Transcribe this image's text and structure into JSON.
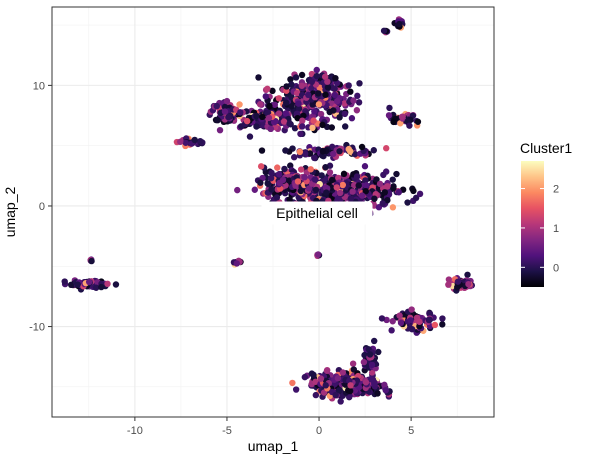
{
  "chart_data": {
    "type": "scatter",
    "title": "",
    "xlabel": "umap_1",
    "ylabel": "umap_2",
    "xlim": [
      -14.5,
      9.5
    ],
    "ylim": [
      -17.5,
      16.5
    ],
    "x_ticks": [
      -10,
      -5,
      0,
      5
    ],
    "y_ticks": [
      -10,
      0,
      10
    ],
    "x_tick_labels": [
      "-10",
      "-5",
      "0",
      "5"
    ],
    "y_tick_labels": [
      "-10",
      "0",
      "10"
    ],
    "grid": true,
    "legend": {
      "title": "Cluster1",
      "placement": "right",
      "type": "colorbar",
      "range": [
        -0.5,
        2.7
      ],
      "ticks": [
        0,
        1,
        2
      ],
      "tick_labels": [
        "0",
        "1",
        "2"
      ],
      "palette": "magma",
      "colors": [
        "#000004",
        "#1d1147",
        "#51127c",
        "#822681",
        "#b73779",
        "#e75263",
        "#fc8961",
        "#fec488",
        "#fcfdbf"
      ]
    },
    "annotation": {
      "text": "Epithelial cell",
      "x": 0,
      "y": 0
    },
    "clusters": [
      {
        "name": "upper-main",
        "cx": -0.5,
        "cy": 8.5,
        "sx": 2.2,
        "sy": 1.6,
        "n": 260
      },
      {
        "name": "upper-left-band",
        "cx": -3.2,
        "cy": 7.2,
        "sx": 1.6,
        "sy": 0.6,
        "n": 120
      },
      {
        "name": "left-blob",
        "cx": -5.0,
        "cy": 7.8,
        "sx": 0.7,
        "sy": 0.7,
        "n": 70
      },
      {
        "name": "top-vertical",
        "cx": 0.0,
        "cy": 10.0,
        "sx": 0.8,
        "sy": 0.9,
        "n": 90
      },
      {
        "name": "upper-right-small",
        "cx": 4.6,
        "cy": 7.2,
        "sx": 0.6,
        "sy": 0.4,
        "n": 40
      },
      {
        "name": "middle-band",
        "cx": 0.5,
        "cy": 4.5,
        "sx": 2.0,
        "sy": 0.4,
        "n": 80
      },
      {
        "name": "center-main",
        "cx": 1.2,
        "cy": 1.2,
        "sx": 2.5,
        "sy": 1.2,
        "n": 420
      },
      {
        "name": "center-left",
        "cx": -1.5,
        "cy": 2.0,
        "sx": 1.3,
        "sy": 1.0,
        "n": 160
      },
      {
        "name": "left-band-small",
        "cx": -7.0,
        "cy": 5.3,
        "sx": 0.7,
        "sy": 0.2,
        "n": 25
      },
      {
        "name": "far-left",
        "cx": -12.5,
        "cy": -6.5,
        "sx": 0.9,
        "sy": 0.25,
        "n": 90
      },
      {
        "name": "far-left-dot",
        "cx": -12.4,
        "cy": -4.5,
        "sx": 0.05,
        "sy": 0.1,
        "n": 5
      },
      {
        "name": "small-left-mid",
        "cx": -4.4,
        "cy": -4.7,
        "sx": 0.15,
        "sy": 0.15,
        "n": 8
      },
      {
        "name": "small-center-dot",
        "cx": -0.1,
        "cy": -4.1,
        "sx": 0.08,
        "sy": 0.08,
        "n": 4
      },
      {
        "name": "right-diagonal",
        "cx": 5.2,
        "cy": -9.6,
        "sx": 1.0,
        "sy": 0.6,
        "n": 90
      },
      {
        "name": "far-right",
        "cx": 7.7,
        "cy": -6.5,
        "sx": 0.5,
        "sy": 0.4,
        "n": 45
      },
      {
        "name": "bottom-main",
        "cx": 1.5,
        "cy": -14.8,
        "sx": 1.6,
        "sy": 0.8,
        "n": 330
      },
      {
        "name": "bottom-right-stem",
        "cx": 2.8,
        "cy": -12.5,
        "sx": 0.4,
        "sy": 0.8,
        "n": 40
      },
      {
        "name": "top-right-dots",
        "cx": 4.4,
        "cy": 15.0,
        "sx": 0.3,
        "sy": 0.3,
        "n": 12
      },
      {
        "name": "top-right-dots-2",
        "cx": 3.6,
        "cy": 14.5,
        "sx": 0.1,
        "sy": 0.1,
        "n": 4
      }
    ]
  }
}
